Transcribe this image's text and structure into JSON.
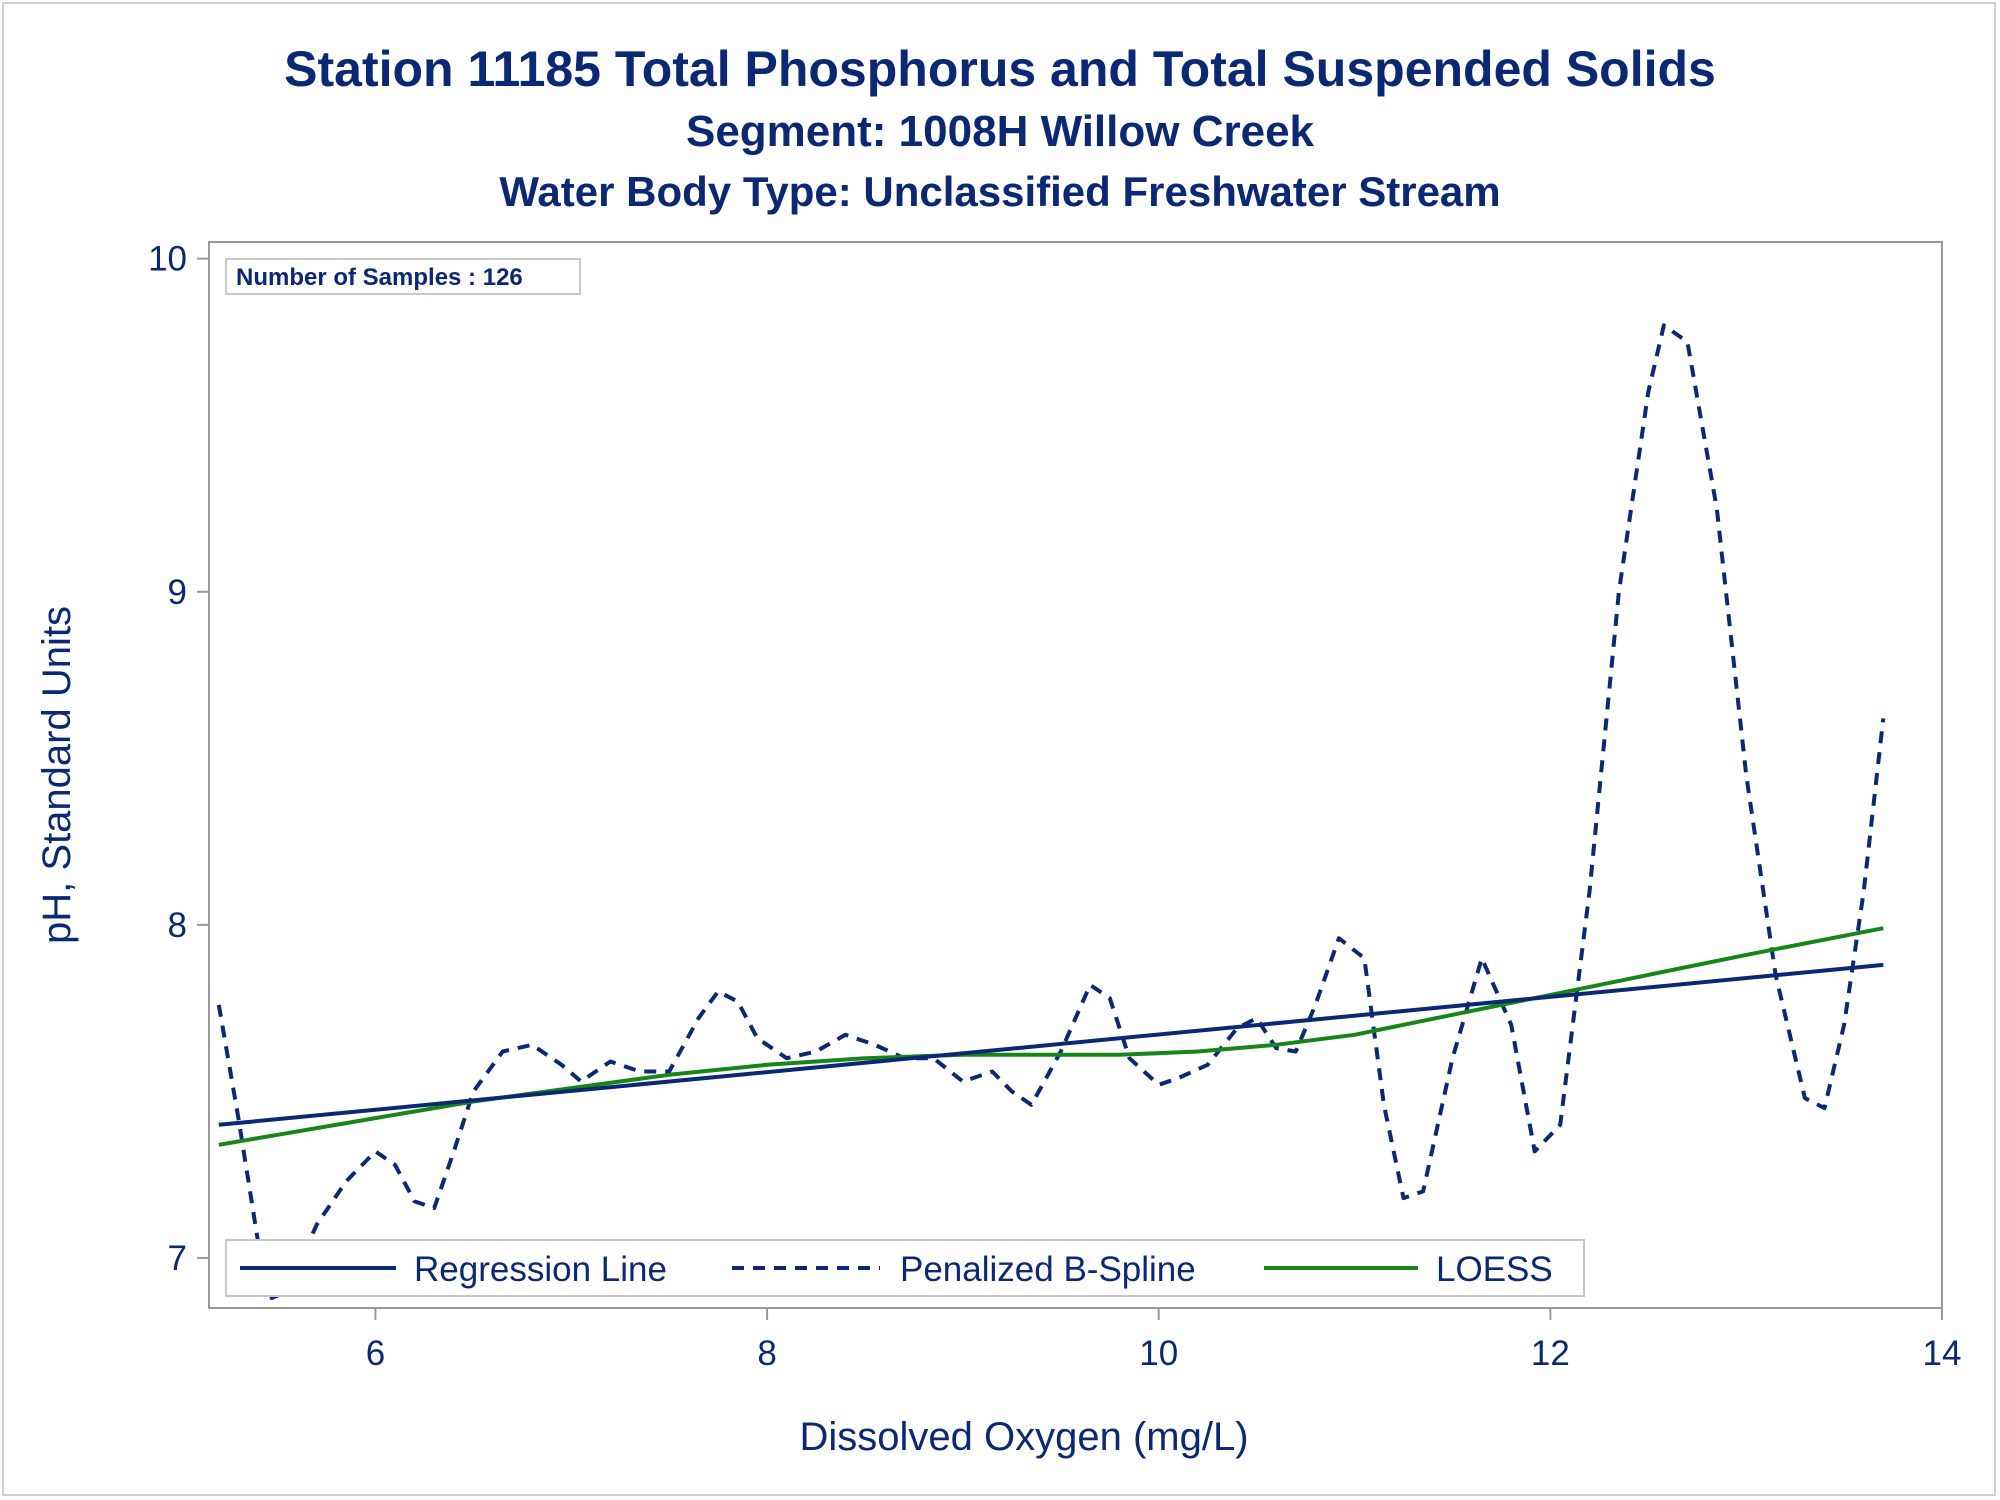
{
  "titles": {
    "line1": "Station 11185  Total Phosphorus and Total Suspended Solids",
    "line2": "Segment: 1008H  Willow Creek",
    "line3": "Water Body Type: Unclassified Freshwater Stream"
  },
  "inset": "Number of Samples : 126",
  "legend": {
    "regression": "Regression Line",
    "spline": "Penalized B-Spline",
    "loess": "LOESS"
  },
  "colors": {
    "navy": "#0a2874",
    "green": "#188518",
    "frame": "#999999"
  },
  "chart_data": {
    "type": "line",
    "xlabel": "Dissolved Oxygen (mg/L)",
    "ylabel": "pH, Standard Units",
    "xlim": [
      5.15,
      14.0
    ],
    "ylim": [
      6.85,
      10.05
    ],
    "xticks": [
      6,
      8,
      10,
      12,
      14
    ],
    "yticks": [
      7,
      8,
      9,
      10
    ],
    "grid": false,
    "legend_position": "bottom-inside",
    "series": [
      {
        "name": "Regression Line",
        "style": "solid",
        "color": "#0a2874",
        "points": [
          [
            5.2,
            7.4
          ],
          [
            13.7,
            7.88
          ]
        ]
      },
      {
        "name": "Penalized B-Spline",
        "style": "dashed",
        "color": "#0a2874",
        "points": [
          [
            5.2,
            7.76
          ],
          [
            5.3,
            7.42
          ],
          [
            5.4,
            7.05
          ],
          [
            5.47,
            6.88
          ],
          [
            5.55,
            6.9
          ],
          [
            5.7,
            7.1
          ],
          [
            5.85,
            7.23
          ],
          [
            6.0,
            7.32
          ],
          [
            6.1,
            7.28
          ],
          [
            6.2,
            7.17
          ],
          [
            6.3,
            7.15
          ],
          [
            6.4,
            7.32
          ],
          [
            6.5,
            7.5
          ],
          [
            6.65,
            7.62
          ],
          [
            6.8,
            7.64
          ],
          [
            6.95,
            7.58
          ],
          [
            7.05,
            7.53
          ],
          [
            7.2,
            7.59
          ],
          [
            7.35,
            7.56
          ],
          [
            7.5,
            7.56
          ],
          [
            7.65,
            7.72
          ],
          [
            7.75,
            7.8
          ],
          [
            7.85,
            7.77
          ],
          [
            7.95,
            7.66
          ],
          [
            8.1,
            7.6
          ],
          [
            8.25,
            7.62
          ],
          [
            8.4,
            7.67
          ],
          [
            8.55,
            7.64
          ],
          [
            8.7,
            7.6
          ],
          [
            8.85,
            7.6
          ],
          [
            9.0,
            7.53
          ],
          [
            9.15,
            7.56
          ],
          [
            9.25,
            7.5
          ],
          [
            9.35,
            7.46
          ],
          [
            9.5,
            7.62
          ],
          [
            9.65,
            7.82
          ],
          [
            9.75,
            7.78
          ],
          [
            9.85,
            7.6
          ],
          [
            10.0,
            7.52
          ],
          [
            10.1,
            7.54
          ],
          [
            10.25,
            7.58
          ],
          [
            10.4,
            7.69
          ],
          [
            10.5,
            7.72
          ],
          [
            10.6,
            7.63
          ],
          [
            10.7,
            7.62
          ],
          [
            10.8,
            7.76
          ],
          [
            10.92,
            7.96
          ],
          [
            11.05,
            7.9
          ],
          [
            11.15,
            7.46
          ],
          [
            11.25,
            7.18
          ],
          [
            11.35,
            7.2
          ],
          [
            11.5,
            7.6
          ],
          [
            11.65,
            7.9
          ],
          [
            11.8,
            7.7
          ],
          [
            11.92,
            7.32
          ],
          [
            12.05,
            7.4
          ],
          [
            12.2,
            8.1
          ],
          [
            12.35,
            9.0
          ],
          [
            12.5,
            9.6
          ],
          [
            12.58,
            9.8
          ],
          [
            12.7,
            9.75
          ],
          [
            12.85,
            9.25
          ],
          [
            13.0,
            8.45
          ],
          [
            13.15,
            7.85
          ],
          [
            13.3,
            7.48
          ],
          [
            13.4,
            7.45
          ],
          [
            13.5,
            7.7
          ],
          [
            13.6,
            8.1
          ],
          [
            13.7,
            8.62
          ]
        ]
      },
      {
        "name": "LOESS",
        "style": "solid",
        "color": "#188518",
        "points": [
          [
            5.2,
            7.34
          ],
          [
            5.5,
            7.37
          ],
          [
            6.0,
            7.42
          ],
          [
            6.5,
            7.47
          ],
          [
            7.0,
            7.51
          ],
          [
            7.5,
            7.55
          ],
          [
            8.0,
            7.58
          ],
          [
            8.5,
            7.6
          ],
          [
            9.0,
            7.61
          ],
          [
            9.5,
            7.61
          ],
          [
            9.8,
            7.61
          ],
          [
            10.2,
            7.62
          ],
          [
            10.6,
            7.64
          ],
          [
            11.0,
            7.67
          ],
          [
            11.5,
            7.73
          ],
          [
            12.0,
            7.79
          ],
          [
            12.5,
            7.85
          ],
          [
            13.0,
            7.91
          ],
          [
            13.7,
            7.99
          ]
        ]
      }
    ]
  }
}
